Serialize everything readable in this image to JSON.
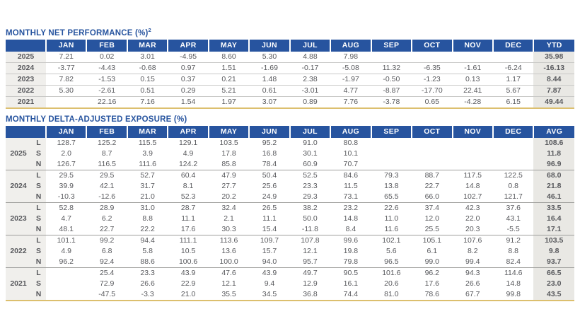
{
  "colors": {
    "header_blue": "#27549f",
    "accent_gold": "#dcbf6e",
    "label_bg": "#f0efec",
    "total_col_bg": "#e9e8e4",
    "data_text": "#58595d"
  },
  "net_performance": {
    "title": "MONTHLY NET PERFORMANCE (%)",
    "footnote_marker": "2",
    "months": [
      "JAN",
      "FEB",
      "MAR",
      "APR",
      "MAY",
      "JUN",
      "JUL",
      "AUG",
      "SEP",
      "OCT",
      "NOV",
      "DEC"
    ],
    "total_label": "YTD",
    "rows": [
      {
        "year": "2025",
        "values": [
          "7.21",
          "0.02",
          "3.01",
          "-4.95",
          "8.60",
          "5.30",
          "4.88",
          "7.98",
          "",
          "",
          "",
          ""
        ],
        "total": "35.98"
      },
      {
        "year": "2024",
        "values": [
          "-3.77",
          "-4.43",
          "-0.68",
          "0.97",
          "1.51",
          "-1.69",
          "-0.17",
          "-5.08",
          "11.32",
          "-6.35",
          "-1.61",
          "-6.24"
        ],
        "total": "-16.13"
      },
      {
        "year": "2023",
        "values": [
          "7.82",
          "-1.53",
          "0.15",
          "0.37",
          "0.21",
          "1.48",
          "2.38",
          "-1.97",
          "-0.50",
          "-1.23",
          "0.13",
          "1.17"
        ],
        "total": "8.44"
      },
      {
        "year": "2022",
        "values": [
          "5.30",
          "-2.61",
          "0.51",
          "0.29",
          "5.21",
          "0.61",
          "-3.01",
          "4.77",
          "-8.87",
          "-17.70",
          "22.41",
          "5.67"
        ],
        "total": "7.87"
      },
      {
        "year": "2021",
        "values": [
          "",
          "22.16",
          "7.16",
          "1.54",
          "1.97",
          "3.07",
          "0.89",
          "7.76",
          "-3.78",
          "0.65",
          "-4.28",
          "6.15"
        ],
        "total": "49.44"
      }
    ]
  },
  "delta_exposure": {
    "title": "MONTHLY DELTA-ADJUSTED EXPOSURE (%)",
    "months": [
      "JAN",
      "FEB",
      "MAR",
      "APR",
      "MAY",
      "JUN",
      "JUL",
      "AUG",
      "SEP",
      "OCT",
      "NOV",
      "DEC"
    ],
    "total_label": "AVG",
    "groups": [
      {
        "year": "2025",
        "rows": [
          {
            "label": "L",
            "values": [
              "128.7",
              "125.2",
              "115.5",
              "129.1",
              "103.5",
              "95.2",
              "91.0",
              "80.8",
              "",
              "",
              "",
              ""
            ],
            "total": "108.6"
          },
          {
            "label": "S",
            "values": [
              "2.0",
              "8.7",
              "3.9",
              "4.9",
              "17.8",
              "16.8",
              "30.1",
              "10.1",
              "",
              "",
              "",
              ""
            ],
            "total": "11.8"
          },
          {
            "label": "N",
            "values": [
              "126.7",
              "116.5",
              "111.6",
              "124.2",
              "85.8",
              "78.4",
              "60.9",
              "70.7",
              "",
              "",
              "",
              ""
            ],
            "total": "96.9"
          }
        ]
      },
      {
        "year": "2024",
        "rows": [
          {
            "label": "L",
            "values": [
              "29.5",
              "29.5",
              "52.7",
              "60.4",
              "47.9",
              "50.4",
              "52.5",
              "84.6",
              "79.3",
              "88.7",
              "117.5",
              "122.5"
            ],
            "total": "68.0"
          },
          {
            "label": "S",
            "values": [
              "39.9",
              "42.1",
              "31.7",
              "8.1",
              "27.7",
              "25.6",
              "23.3",
              "11.5",
              "13.8",
              "22.7",
              "14.8",
              "0.8"
            ],
            "total": "21.8"
          },
          {
            "label": "N",
            "values": [
              "-10.3",
              "-12.6",
              "21.0",
              "52.3",
              "20.2",
              "24.9",
              "29.3",
              "73.1",
              "65.5",
              "66.0",
              "102.7",
              "121.7"
            ],
            "total": "46.1"
          }
        ]
      },
      {
        "year": "2023",
        "rows": [
          {
            "label": "L",
            "values": [
              "52.8",
              "28.9",
              "31.0",
              "28.7",
              "32.4",
              "26.5",
              "38.2",
              "23.2",
              "22.6",
              "37.4",
              "42.3",
              "37.6"
            ],
            "total": "33.5"
          },
          {
            "label": "S",
            "values": [
              "4.7",
              "6.2",
              "8.8",
              "11.1",
              "2.1",
              "11.1",
              "50.0",
              "14.8",
              "11.0",
              "12.0",
              "22.0",
              "43.1"
            ],
            "total": "16.4"
          },
          {
            "label": "N",
            "values": [
              "48.1",
              "22.7",
              "22.2",
              "17.6",
              "30.3",
              "15.4",
              "-11.8",
              "8.4",
              "11.6",
              "25.5",
              "20.3",
              "-5.5"
            ],
            "total": "17.1"
          }
        ]
      },
      {
        "year": "2022",
        "rows": [
          {
            "label": "L",
            "values": [
              "101.1",
              "99.2",
              "94.4",
              "111.1",
              "113.6",
              "109.7",
              "107.8",
              "99.6",
              "102.1",
              "105.1",
              "107.6",
              "91.2"
            ],
            "total": "103.5"
          },
          {
            "label": "S",
            "values": [
              "4.9",
              "6.8",
              "5.8",
              "10.5",
              "13.6",
              "15.7",
              "12.1",
              "19.8",
              "5.6",
              "6.1",
              "8.2",
              "8.8"
            ],
            "total": "9.8"
          },
          {
            "label": "N",
            "values": [
              "96.2",
              "92.4",
              "88.6",
              "100.6",
              "100.0",
              "94.0",
              "95.7",
              "79.8",
              "96.5",
              "99.0",
              "99.4",
              "82.4"
            ],
            "total": "93.7"
          }
        ]
      },
      {
        "year": "2021",
        "rows": [
          {
            "label": "L",
            "values": [
              "",
              "25.4",
              "23.3",
              "43.9",
              "47.6",
              "43.9",
              "49.7",
              "90.5",
              "101.6",
              "96.2",
              "94.3",
              "114.6"
            ],
            "total": "66.5"
          },
          {
            "label": "S",
            "values": [
              "",
              "72.9",
              "26.6",
              "22.9",
              "12.1",
              "9.4",
              "12.9",
              "16.1",
              "20.6",
              "17.6",
              "26.6",
              "14.8"
            ],
            "total": "23.0"
          },
          {
            "label": "N",
            "values": [
              "",
              "-47.5",
              "-3.3",
              "21.0",
              "35.5",
              "34.5",
              "36.8",
              "74.4",
              "81.0",
              "78.6",
              "67.7",
              "99.8"
            ],
            "total": "43.5"
          }
        ]
      }
    ]
  }
}
